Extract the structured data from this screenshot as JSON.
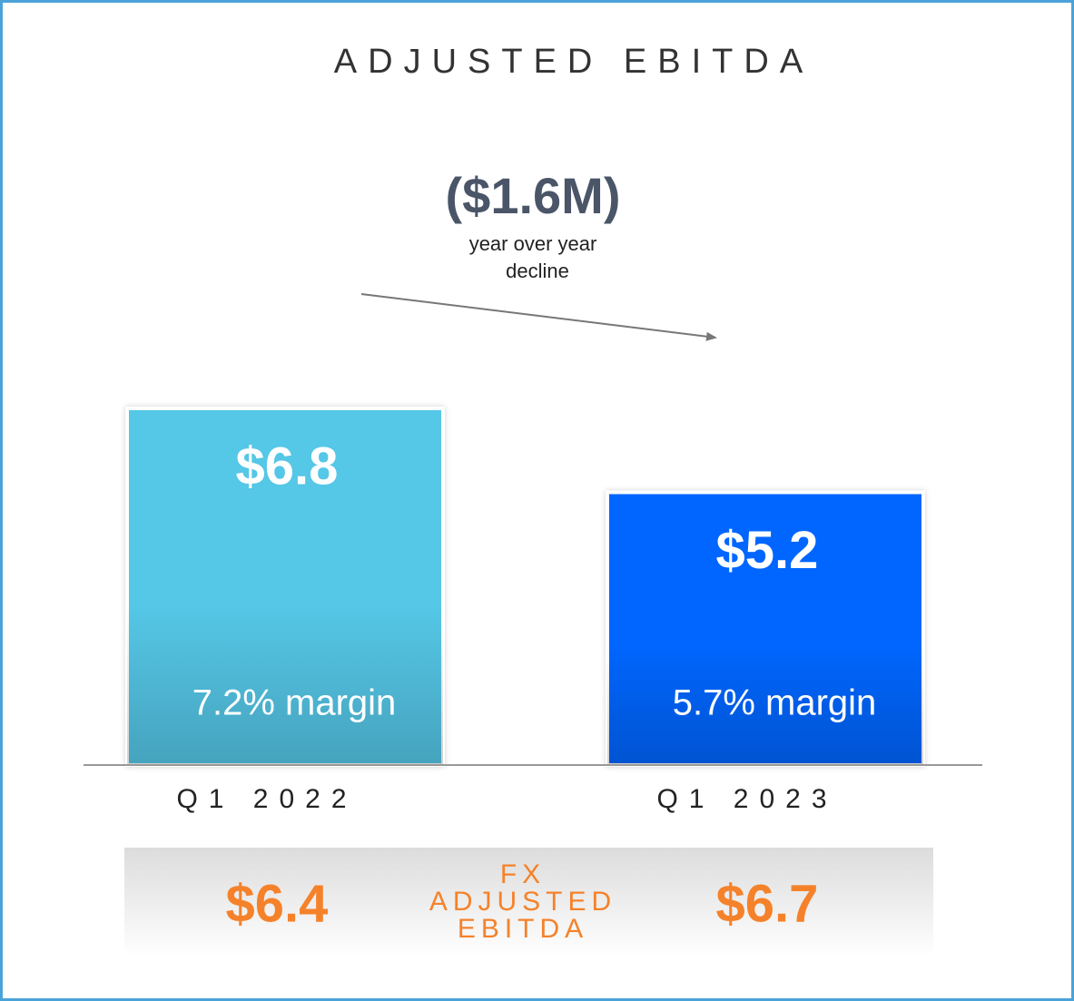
{
  "chart_data": {
    "type": "bar",
    "title": "ADJUSTED EBITDA",
    "categories": [
      "Q1 2022",
      "Q1 2023"
    ],
    "values": [
      6.8,
      5.2
    ],
    "value_labels": [
      "$6.8",
      "$5.2"
    ],
    "colors": [
      "#55c7e7",
      "#0066ff"
    ],
    "margin_labels": [
      "7.2% margin",
      "5.7% margin"
    ],
    "annotation": {
      "text": "($1.6M)",
      "note": [
        "year over year",
        "decline"
      ]
    },
    "fx_adjusted": {
      "label": [
        "FX",
        "ADJUSTED",
        "EBITDA"
      ],
      "values": [
        "$6.4",
        "$6.7"
      ]
    }
  }
}
